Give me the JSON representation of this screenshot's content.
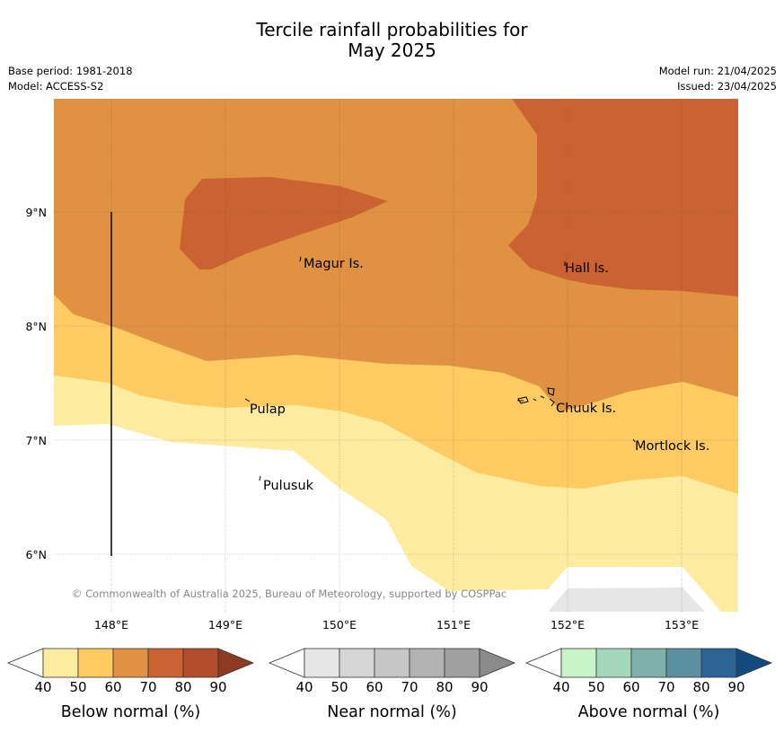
{
  "title_line1": "Tercile rainfall probabilities for",
  "title_line2": "May 2025",
  "base_period": "Base period: 1981-2018",
  "model": "Model: ACCESS-S2",
  "model_run": "Model run: 21/04/2025",
  "issued": "Issued: 23/04/2025",
  "copyright": "© Commonwealth of Australia 2025, Bureau of Meteorology, supported by COSPPac",
  "lat_labels": [
    "9°N",
    "8°N",
    "7°N",
    "6°N"
  ],
  "lon_labels": [
    "148°E",
    "149°E",
    "150°E",
    "151°E",
    "152°E",
    "153°E"
  ],
  "places": [
    "Magur Is.",
    "Hall Is.",
    "Pulap",
    "Chuuk Is.",
    "Mortlock Is.",
    "Pulusuk"
  ],
  "colorbars": [
    {
      "label": "Below normal (%)",
      "ticks": [
        "40",
        "50",
        "60",
        "70",
        "80",
        "90"
      ],
      "colors": [
        "#ffffff",
        "#fdec9f",
        "#fdcb62",
        "#e09142",
        "#ca6232",
        "#b24c2a",
        "#8e3a22"
      ]
    },
    {
      "label": "Near normal (%)",
      "ticks": [
        "40",
        "50",
        "60",
        "70",
        "80",
        "90"
      ],
      "colors": [
        "#ffffff",
        "#e6e6e6",
        "#d6d6d6",
        "#c6c6c6",
        "#b2b2b2",
        "#a0a0a0",
        "#8a8a8a"
      ]
    },
    {
      "label": "Above normal (%)",
      "ticks": [
        "40",
        "50",
        "60",
        "70",
        "80",
        "90"
      ],
      "colors": [
        "#ffffff",
        "#c8f5c8",
        "#a5d8bb",
        "#7fb1ac",
        "#5a90a0",
        "#2d6496",
        "#124a80"
      ]
    }
  ],
  "legend_fill_colors": {
    "below_50_60": "#fdec9f",
    "below_60_70": "#fdcb62",
    "below_70_80": "#e09142",
    "below_80_90": "#ca6232",
    "near_50_60": "#e6e6e6"
  }
}
